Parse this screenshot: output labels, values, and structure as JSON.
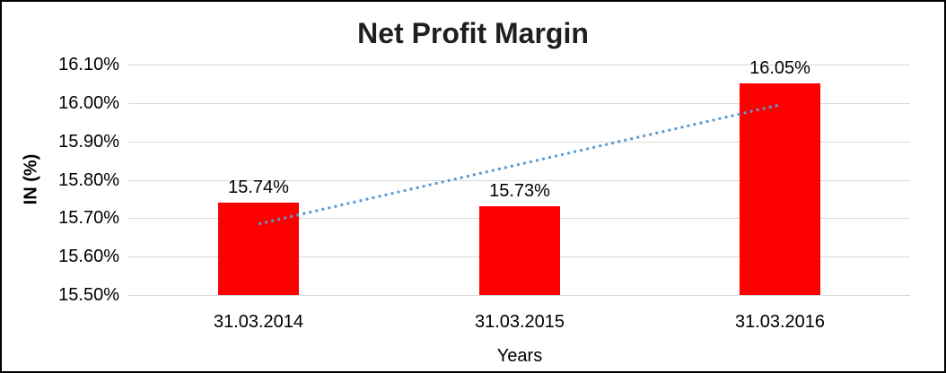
{
  "chart": {
    "title": "Net Profit Margin",
    "y_axis_title": "IN (%)",
    "x_axis_title": "Years"
  },
  "chart_data": {
    "type": "bar",
    "title": "Net Profit Margin",
    "xlabel": "Years",
    "ylabel": "IN (%)",
    "categories": [
      "31.03.2014",
      "31.03.2015",
      "31.03.2016"
    ],
    "values": [
      15.74,
      15.73,
      16.05
    ],
    "data_labels": [
      "15.74%",
      "15.73%",
      "16.05%"
    ],
    "ylim": [
      15.5,
      16.1
    ],
    "y_ticks": [
      16.1,
      16.0,
      15.9,
      15.8,
      15.7,
      15.6,
      15.5
    ],
    "y_tick_labels": [
      "16.10%",
      "16.00%",
      "15.90%",
      "15.80%",
      "15.70%",
      "15.60%",
      "15.50%"
    ],
    "grid": true,
    "legend": "none",
    "bar_color": "#FF0000",
    "grid_color": "#D9D9D9",
    "trendline": {
      "type": "linear",
      "style": "dotted",
      "color": "#5B9BD5",
      "start_value": 15.685,
      "end_value": 15.995
    }
  }
}
